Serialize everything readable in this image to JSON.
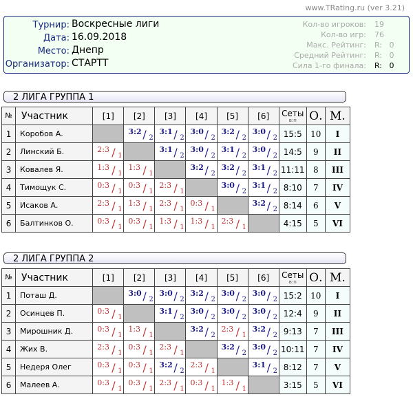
{
  "site": "www.TRating.ru (ver 3.21)",
  "info": {
    "labels": [
      "Турнир:",
      "Дата:",
      "Место:",
      "Организатор:"
    ],
    "values": [
      "Воскресные лиги",
      "16.09.2018",
      "Днепр",
      "СТАРТТ"
    ],
    "stat_labels": [
      "Кол-во игроков:",
      "Кол-во игр:",
      "Макс. Рейтинг:",
      "Средний Рейтинг:",
      "Сила 1-го финала:"
    ],
    "stat_values": [
      "19",
      "76",
      "R:   0",
      "R:   0",
      "R:   0"
    ]
  },
  "headers": {
    "num": "№",
    "name": "Участник",
    "cols": [
      "[1]",
      "[2]",
      "[3]",
      "[4]",
      "[5]",
      "[6]"
    ],
    "sets": "Сеты",
    "sets_sub": "в:п",
    "points": "О.",
    "place": "М."
  },
  "groups": [
    {
      "title": "2 ЛИГА ГРУППА 1",
      "rows": [
        {
          "n": "1",
          "name": "Коробов А.",
          "res": [
            "",
            "3:2/2",
            "3:1/2",
            "3:0/2",
            "3:2/2",
            "3:0/2"
          ],
          "sets": "15:5",
          "pts": "10",
          "place": "I"
        },
        {
          "n": "2",
          "name": "Линский Б.",
          "res": [
            "2:3/1",
            "",
            "3:1/2",
            "3:0/2",
            "3:1/2",
            "3:0/2"
          ],
          "sets": "14:5",
          "pts": "9",
          "place": "II"
        },
        {
          "n": "3",
          "name": "Ковалев Я.",
          "res": [
            "1:3/1",
            "1:3/1",
            "",
            "3:2/2",
            "3:2/2",
            "3:1/2"
          ],
          "sets": "11:11",
          "pts": "8",
          "place": "III"
        },
        {
          "n": "4",
          "name": "Тимощук С.",
          "res": [
            "0:3/1",
            "0:3/1",
            "2:3/1",
            "",
            "3:0/2",
            "3:1/2"
          ],
          "sets": "8:10",
          "pts": "7",
          "place": "IV"
        },
        {
          "n": "5",
          "name": "Исаков А.",
          "res": [
            "2:3/1",
            "1:3/1",
            "2:3/1",
            "0:3/1",
            "",
            "3:2/2"
          ],
          "sets": "8:14",
          "pts": "6",
          "place": "V"
        },
        {
          "n": "6",
          "name": "Балтинков О.",
          "res": [
            "0:3/1",
            "0:3/1",
            "1:3/1",
            "1:3/1",
            "2:3/1",
            ""
          ],
          "sets": "4:15",
          "pts": "5",
          "place": "VI"
        }
      ]
    },
    {
      "title": "2 ЛИГА ГРУППА 2",
      "rows": [
        {
          "n": "1",
          "name": "Поташ Д.",
          "res": [
            "",
            "3:0/2",
            "3:0/2",
            "3:2/2",
            "3:0/2",
            "3:0/2"
          ],
          "sets": "15:2",
          "pts": "10",
          "place": "I"
        },
        {
          "n": "2",
          "name": "Осинцев П.",
          "res": [
            "0:3/1",
            "",
            "3:1/2",
            "3:0/2",
            "3:0/2",
            "3:0/2"
          ],
          "sets": "12:4",
          "pts": "9",
          "place": "II"
        },
        {
          "n": "3",
          "name": "Мирошник Д.",
          "res": [
            "0:3/1",
            "1:3/1",
            "",
            "3:2/2",
            "2:3/1",
            "3:2/2"
          ],
          "sets": "9:13",
          "pts": "7",
          "place": "III"
        },
        {
          "n": "4",
          "name": "Жих В.",
          "res": [
            "2:3/1",
            "0:3/1",
            "2:3/1",
            "",
            "3:2/2",
            "3:0/2"
          ],
          "sets": "10:11",
          "pts": "7",
          "place": "IV"
        },
        {
          "n": "5",
          "name": "Недеря Олег",
          "res": [
            "0:3/1",
            "0:3/1",
            "3:2/2",
            "2:3/1",
            "",
            "3:1/2"
          ],
          "sets": "8:12",
          "pts": "7",
          "place": "V"
        },
        {
          "n": "6",
          "name": "Малеев А.",
          "res": [
            "0:3/1",
            "0:3/1",
            "2:3/1",
            "0:3/1",
            "1:3/1",
            ""
          ],
          "sets": "3:15",
          "pts": "5",
          "place": "VI"
        }
      ]
    }
  ],
  "colors": {
    "win": "#1a1a8a",
    "loss": "#c03030",
    "diag": "#c0c0c0",
    "border": "#1a2a80"
  }
}
